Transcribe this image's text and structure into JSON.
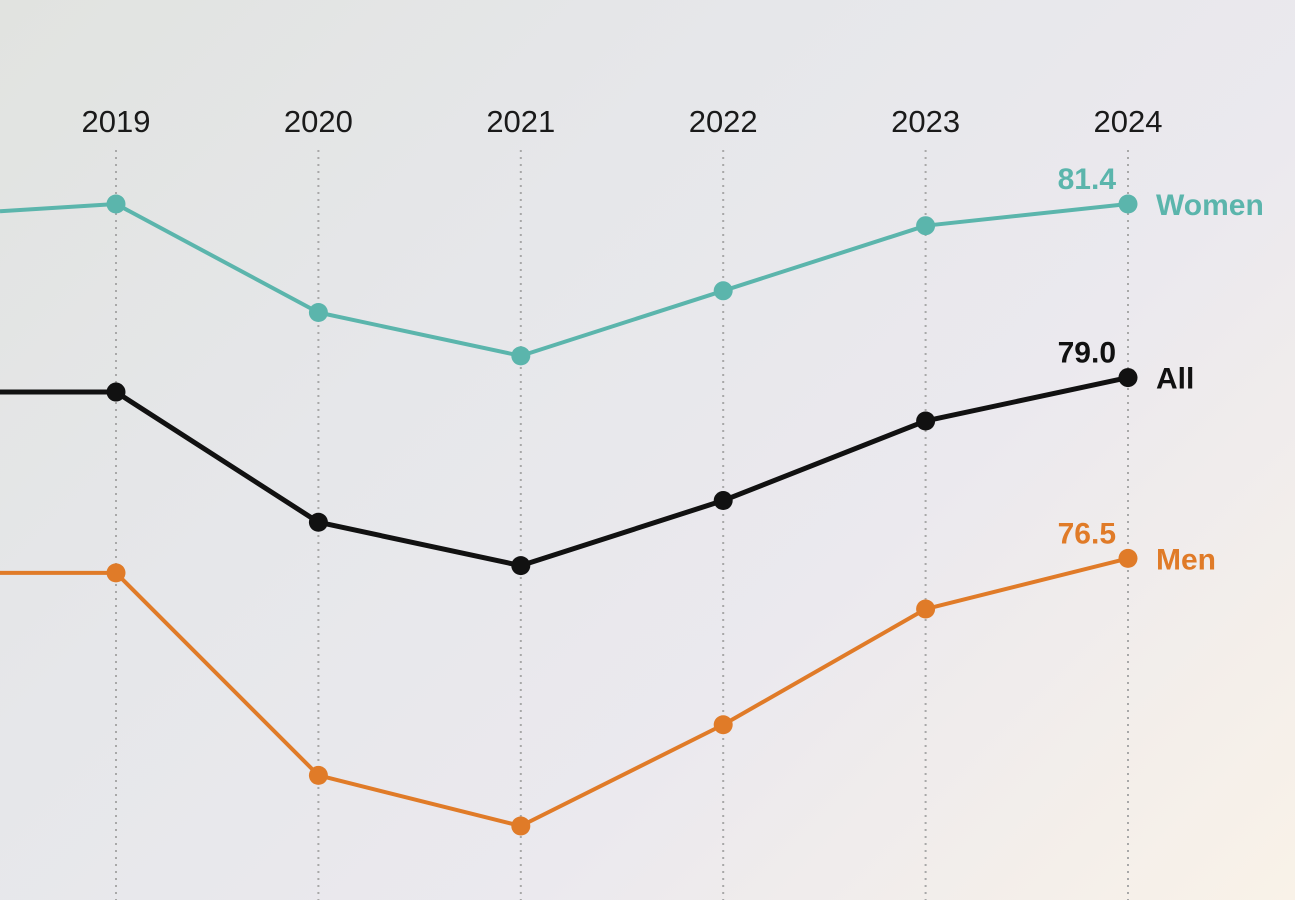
{
  "chart_data": {
    "type": "line",
    "x": [
      "2019",
      "2020",
      "2021",
      "2022",
      "2023",
      "2024"
    ],
    "grid": "vertical-dotted",
    "legend": "right-end-labels",
    "series": [
      {
        "name": "Women",
        "color": "#5bb5ac",
        "value_label": "81.4",
        "values": [
          81.4,
          79.9,
          79.3,
          80.2,
          81.1,
          81.4
        ],
        "lead_in": 81.3
      },
      {
        "name": "All",
        "color": "#111111",
        "value_label": "79.0",
        "values": [
          78.8,
          77.0,
          76.4,
          77.3,
          78.4,
          79.0
        ],
        "lead_in": 78.8
      },
      {
        "name": "Men",
        "color": "#e07b28",
        "value_label": "76.5",
        "values": [
          76.3,
          73.5,
          72.8,
          74.2,
          75.8,
          76.5
        ],
        "lead_in": 76.3
      }
    ]
  }
}
